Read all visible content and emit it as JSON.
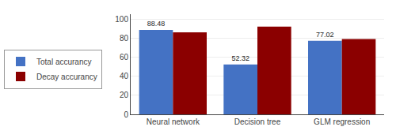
{
  "chart_data": {
    "type": "bar",
    "categories": [
      "Neural network",
      "Decision tree",
      "GLM regression"
    ],
    "series": [
      {
        "name": "Total accurancy",
        "color": "#4472C4",
        "values": [
          88.48,
          52.32,
          77.02
        ],
        "data_labels": true
      },
      {
        "name": "Decay accurancy",
        "color": "#8B0000",
        "values": [
          86.0,
          92.0,
          79.0
        ]
      }
    ],
    "ylim": [
      0,
      105
    ],
    "yticks": [
      0,
      20,
      40,
      60,
      80,
      100
    ],
    "grid": true,
    "legend": "left"
  }
}
